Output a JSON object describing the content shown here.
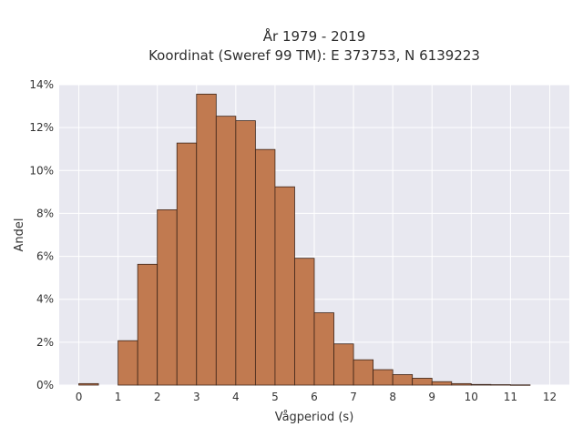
{
  "chart_data": {
    "type": "bar",
    "title": [
      "År 1979 - 2019",
      "Koordinat (Sweref 99 TM): E 373753, N 6139223"
    ],
    "xlabel": "Vågperiod (s)",
    "ylabel": "Andel",
    "xlim": [
      -0.5,
      12.5
    ],
    "ylim": [
      0,
      0.14
    ],
    "bin_width": 0.5,
    "x_ticks": [
      0,
      1,
      2,
      3,
      4,
      5,
      6,
      7,
      8,
      9,
      10,
      11,
      12
    ],
    "x_tick_labels": [
      "0",
      "1",
      "2",
      "3",
      "4",
      "5",
      "6",
      "7",
      "8",
      "9",
      "10",
      "11",
      "12"
    ],
    "y_ticks": [
      0,
      0.02,
      0.04,
      0.06,
      0.08,
      0.1,
      0.12,
      0.14
    ],
    "y_tick_labels": [
      "0%",
      "2%",
      "4%",
      "6%",
      "8%",
      "10%",
      "12%",
      "14%"
    ],
    "grid": true,
    "bar_color": "#c17a50",
    "bar_edge_color": "#3d2418",
    "background_color": "#e8e8f0",
    "bins": [
      {
        "x0": 0.0,
        "x1": 0.5,
        "value": 0.0007
      },
      {
        "x0": 1.0,
        "x1": 1.5,
        "value": 0.0207
      },
      {
        "x0": 1.5,
        "x1": 2.0,
        "value": 0.0563
      },
      {
        "x0": 2.0,
        "x1": 2.5,
        "value": 0.0817
      },
      {
        "x0": 2.5,
        "x1": 3.0,
        "value": 0.1128
      },
      {
        "x0": 3.0,
        "x1": 3.5,
        "value": 0.1356
      },
      {
        "x0": 3.5,
        "x1": 4.0,
        "value": 0.1253
      },
      {
        "x0": 4.0,
        "x1": 4.5,
        "value": 0.1232
      },
      {
        "x0": 4.5,
        "x1": 5.0,
        "value": 0.1098
      },
      {
        "x0": 5.0,
        "x1": 5.5,
        "value": 0.0924
      },
      {
        "x0": 5.5,
        "x1": 6.0,
        "value": 0.0591
      },
      {
        "x0": 6.0,
        "x1": 6.5,
        "value": 0.0337
      },
      {
        "x0": 6.5,
        "x1": 7.0,
        "value": 0.0192
      },
      {
        "x0": 7.0,
        "x1": 7.5,
        "value": 0.0118
      },
      {
        "x0": 7.5,
        "x1": 8.0,
        "value": 0.0072
      },
      {
        "x0": 8.0,
        "x1": 8.5,
        "value": 0.0049
      },
      {
        "x0": 8.5,
        "x1": 9.0,
        "value": 0.0032
      },
      {
        "x0": 9.0,
        "x1": 9.5,
        "value": 0.0016
      },
      {
        "x0": 9.5,
        "x1": 10.0,
        "value": 0.0007
      },
      {
        "x0": 10.0,
        "x1": 10.5,
        "value": 0.0003
      },
      {
        "x0": 10.5,
        "x1": 11.0,
        "value": 0.0002
      },
      {
        "x0": 11.0,
        "x1": 11.5,
        "value": 0.0001
      }
    ]
  }
}
